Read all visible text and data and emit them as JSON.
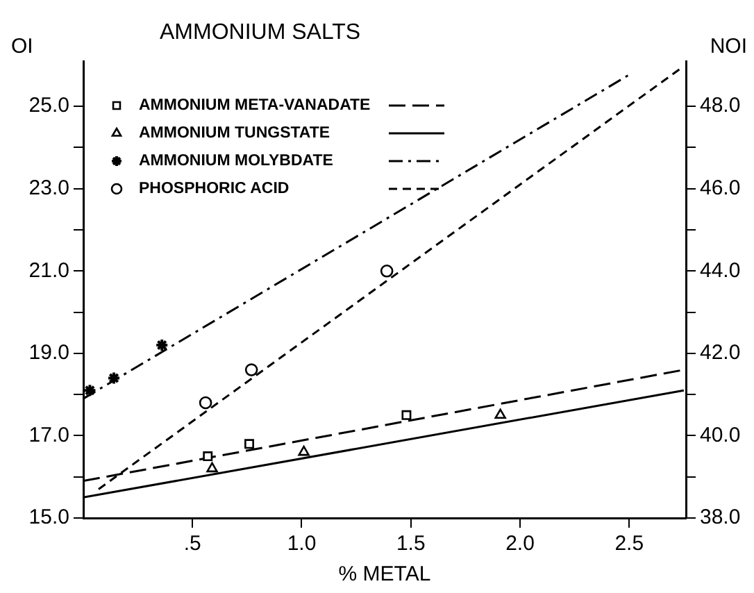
{
  "chart_data": {
    "type": "scatter",
    "title": "AMMONIUM SALTS",
    "xlabel": "% METAL",
    "ylabel": "OI",
    "y2label": "NOI",
    "xlim": [
      0,
      2.76
    ],
    "xticks": [
      {
        "value": 0.5,
        "label": ".5"
      },
      {
        "value": 1,
        "label": "1.0"
      },
      {
        "value": 1.5,
        "label": "1.5"
      },
      {
        "value": 2,
        "label": "2.0"
      },
      {
        "value": 2.5,
        "label": "2.5"
      }
    ],
    "ylim": [
      15,
      26.1
    ],
    "yticks": [
      {
        "value": 15,
        "label": "15.0"
      },
      {
        "value": 16,
        "label": null
      },
      {
        "value": 17,
        "label": "17.0"
      },
      {
        "value": 18,
        "label": null
      },
      {
        "value": 19,
        "label": "19.0"
      },
      {
        "value": 20,
        "label": null
      },
      {
        "value": 21,
        "label": "21.0"
      },
      {
        "value": 22,
        "label": null
      },
      {
        "value": 23,
        "label": "23.0"
      },
      {
        "value": 24,
        "label": null
      },
      {
        "value": 25,
        "label": "25.0"
      }
    ],
    "y2lim": [
      38,
      49.1
    ],
    "y2ticks": [
      {
        "value": 38,
        "label": "38.0"
      },
      {
        "value": 39,
        "label": null
      },
      {
        "value": 40,
        "label": "40.0"
      },
      {
        "value": 41,
        "label": null
      },
      {
        "value": 42,
        "label": "42.0"
      },
      {
        "value": 43,
        "label": null
      },
      {
        "value": 44,
        "label": "44.0"
      },
      {
        "value": 45,
        "label": null
      },
      {
        "value": 46,
        "label": "46.0"
      },
      {
        "value": 47,
        "label": null
      },
      {
        "value": 48,
        "label": "48.0"
      }
    ],
    "grid": false,
    "legend": "top left",
    "series": [
      {
        "name": "AMMONIUM META-VANADATE",
        "color": "#000000",
        "marker": "square",
        "x": [
          0.57,
          0.76,
          1.48
        ],
        "values": [
          16.5,
          16.8,
          17.5
        ]
      },
      {
        "type": "line",
        "color": "#000000",
        "marker": "none",
        "line_style": "dashed",
        "x": [
          0,
          2.75
        ],
        "values": [
          15.9,
          18.6
        ]
      },
      {
        "name": "AMMONIUM TUNGSTATE",
        "color": "#000000",
        "marker": "triangle",
        "x": [
          0.59,
          1.01,
          1.91
        ],
        "values": [
          16.2,
          16.6,
          17.5
        ]
      },
      {
        "type": "line",
        "color": "#000000",
        "marker": "none",
        "line_style": "solid",
        "x": [
          0,
          2.75
        ],
        "values": [
          15.5,
          18.1
        ]
      },
      {
        "name": "AMMONIUM MOLYBDATE",
        "color": "#000000",
        "marker": "cross",
        "x": [
          0.03,
          0.14,
          0.36
        ],
        "values": [
          18.1,
          18.4,
          19.2
        ]
      },
      {
        "type": "line",
        "color": "#000000",
        "marker": "none",
        "line_style": "dashdot",
        "x": [
          0,
          2.51
        ],
        "values": [
          17.9,
          25.8
        ]
      },
      {
        "name": "PHOSPHORIC ACID",
        "color": "#000000",
        "marker": "circle",
        "x": [
          0.56,
          0.77,
          1.39
        ],
        "values": [
          17.8,
          18.6,
          21.0
        ]
      },
      {
        "type": "line",
        "color": "#000000",
        "marker": "none",
        "line_style": "dotted",
        "x": [
          0.07,
          2.73
        ],
        "values": [
          15.7,
          25.9
        ]
      }
    ]
  }
}
